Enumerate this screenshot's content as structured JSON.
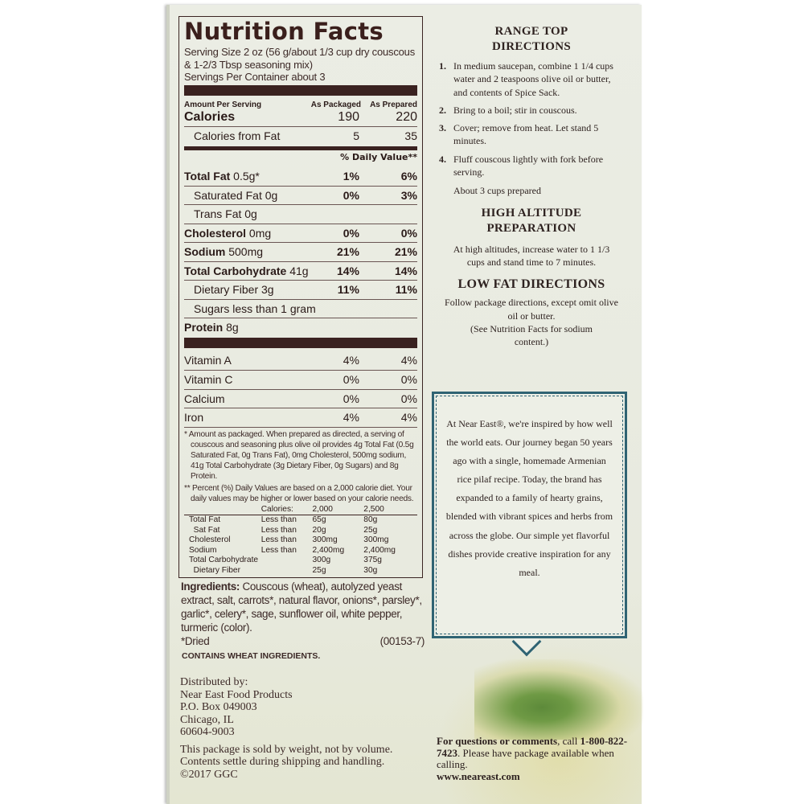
{
  "nutrition": {
    "title": "Nutrition Facts",
    "serving_size": "Serving Size 2 oz (56 g/about 1/3 cup dry couscous & 1-2/3 Tbsp seasoning mix)",
    "servings": "Servings Per Container about 3",
    "amount_per_serving": "Amount Per Serving",
    "col1": "As Packaged",
    "col2": "As Prepared",
    "calories": {
      "label": "Calories",
      "v1": "190",
      "v2": "220"
    },
    "calories_fat": {
      "label": "Calories from Fat",
      "v1": "5",
      "v2": "35"
    },
    "dv_header": "% Daily Value**",
    "rows": [
      {
        "bold": "Total Fat",
        "rest": " 0.5g*",
        "v1": "1%",
        "v2": "6%",
        "indent": false
      },
      {
        "bold": "",
        "rest": "Saturated Fat 0g",
        "v1": "0%",
        "v2": "3%",
        "indent": true
      },
      {
        "bold": "",
        "rest": "Trans Fat 0g",
        "v1": "",
        "v2": "",
        "indent": true
      },
      {
        "bold": "Cholesterol",
        "rest": " 0mg",
        "v1": "0%",
        "v2": "0%",
        "indent": false
      },
      {
        "bold": "Sodium",
        "rest": " 500mg",
        "v1": "21%",
        "v2": "21%",
        "indent": false
      },
      {
        "bold": "Total Carbohydrate",
        "rest": " 41g",
        "v1": "14%",
        "v2": "14%",
        "indent": false
      },
      {
        "bold": "",
        "rest": "Dietary Fiber 3g",
        "v1": "11%",
        "v2": "11%",
        "indent": true
      },
      {
        "bold": "",
        "rest": "Sugars less than 1 gram",
        "v1": "",
        "v2": "",
        "indent": true
      },
      {
        "bold": "Protein",
        "rest": " 8g",
        "v1": "",
        "v2": "",
        "indent": false
      }
    ],
    "vitamins": [
      {
        "label": "Vitamin A",
        "v1": "4%",
        "v2": "4%"
      },
      {
        "label": "Vitamin C",
        "v1": "0%",
        "v2": "0%"
      },
      {
        "label": "Calcium",
        "v1": "0%",
        "v2": "0%"
      },
      {
        "label": "Iron",
        "v1": "4%",
        "v2": "4%"
      }
    ],
    "footnote1": "* Amount as packaged. When prepared as directed, a serving of couscous and seasoning plus olive oil provides 4g Total Fat (0.5g Saturated Fat, 0g Trans Fat), 0mg Cholesterol, 500mg sodium, 41g Total Carbohydrate (3g Dietary Fiber, 0g Sugars) and 8g Protein.",
    "footnote2": "** Percent (%) Daily Values are based on a 2,000 calorie diet. Your daily values may be higher or lower based on your calorie needs.",
    "dv_table": [
      [
        "",
        "Calories:",
        "2,000",
        "2,500"
      ],
      [
        "Total Fat",
        "Less than",
        "65g",
        "80g"
      ],
      [
        "  Sat Fat",
        "Less than",
        "20g",
        "25g"
      ],
      [
        "Cholesterol",
        "Less than",
        "300mg",
        "300mg"
      ],
      [
        "Sodium",
        "Less than",
        "2,400mg",
        "2,400mg"
      ],
      [
        "Total Carbohydrate",
        "",
        "300g",
        "375g"
      ],
      [
        "  Dietary Fiber",
        "",
        "25g",
        "30g"
      ]
    ]
  },
  "ingredients": {
    "label": "Ingredients:",
    "text": " Couscous (wheat), autolyzed yeast extract, salt, carrots*, natural flavor, onions*, parsley*, garlic*, celery*, sage, sunflower oil, white pepper, turmeric (color).",
    "dried": "*Dried",
    "code": "(00153-7)",
    "allergen": "CONTAINS WHEAT INGREDIENTS."
  },
  "distributor": [
    "Distributed by:",
    "Near East Food Products",
    "P.O. Box 049003",
    "Chicago, IL",
    "60604-9003"
  ],
  "package_note": [
    "This package is sold by weight, not by volume.",
    "Contents settle during shipping and handling.",
    "©2017 GGC"
  ],
  "directions": {
    "title": "RANGE TOP DIRECTIONS",
    "steps": [
      {
        "n": "1.",
        "text": "In medium saucepan, combine 1 1/4 cups water and 2 teaspoons olive oil or butter, and contents of Spice Sack."
      },
      {
        "n": "2.",
        "text": "Bring to a boil; stir in couscous."
      },
      {
        "n": "3.",
        "text": "Cover; remove from heat.  Let stand 5 minutes."
      },
      {
        "n": "4.",
        "text": "Fluff couscous lightly with fork before serving."
      }
    ],
    "yield": "About 3 cups prepared"
  },
  "high_altitude": {
    "title": "HIGH ALTITUDE PREPARATION",
    "text": "At high altitudes, increase water to 1 1/3 cups and stand time to 7 minutes."
  },
  "low_fat": {
    "title": "LOW FAT DIRECTIONS",
    "text": "Follow package directions, except omit olive oil or butter.",
    "note": "(See Nutrition Facts for sodium content.)"
  },
  "story": "At Near East®, we're inspired by how well the world eats. Our journey began 50 years ago with a single, homemade Armenian rice pilaf recipe. Today, the brand has expanded to a family of hearty grains, blended with vibrant spices and herbs from across the globe. Our simple yet flavorful dishes provide creative inspiration for any meal.",
  "contact": {
    "bold": "For questions or comments",
    "rest": ", call",
    "phone": "1-800-822-7423",
    "after": ". Please have package available when calling.",
    "url": "www.neareast.com"
  },
  "colors": {
    "label_ink": "#3a2220",
    "story_border": "#2f6373",
    "package": "#e9ebe0"
  }
}
